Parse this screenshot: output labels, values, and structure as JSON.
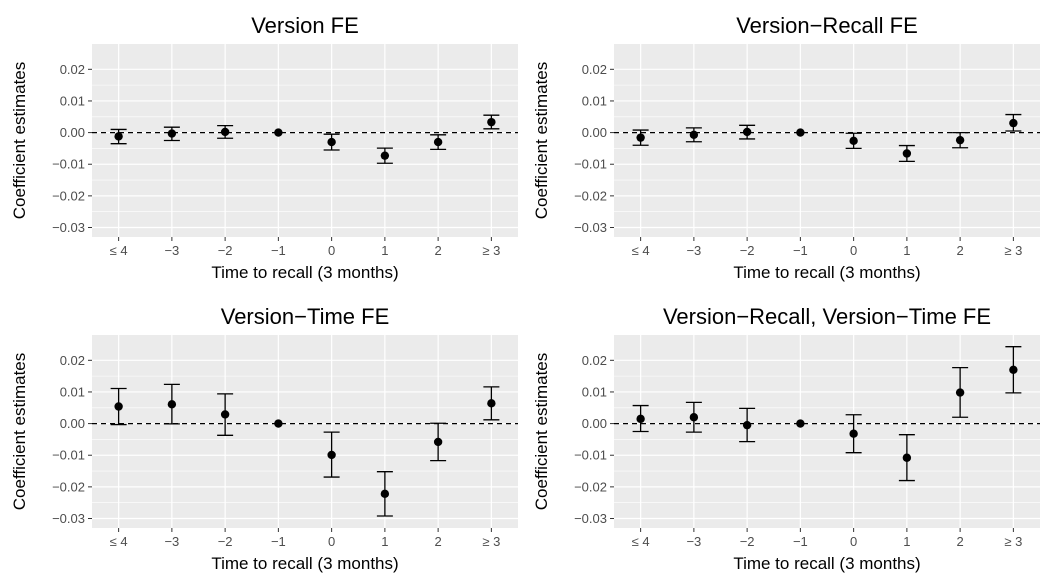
{
  "figure": {
    "background": "#ffffff",
    "panel_background": "#ebebeb",
    "grid_color": "#ffffff",
    "tick_color": "#333333",
    "tick_label_color": "#4d4d4d",
    "point_color": "#000000",
    "reference_line": {
      "y": 0,
      "style": "dashed",
      "color": "#000000"
    }
  },
  "chart_data": [
    {
      "type": "scatter",
      "title": "Version FE",
      "xlabel": "Time to recall (3 months)",
      "ylabel": "Coefficient estimates",
      "categories": [
        "≤ 4",
        "−3",
        "−2",
        "−1",
        "0",
        "1",
        "2",
        "≥ 3"
      ],
      "ylim": [
        -0.033,
        0.028
      ],
      "yticks": [
        -0.03,
        -0.02,
        -0.01,
        0.0,
        0.01,
        0.02
      ],
      "ytick_labels": [
        "−0.03",
        "−0.02",
        "−0.01",
        "0.00",
        "0.01",
        "0.02"
      ],
      "grid": true,
      "values": [
        -0.0012,
        -0.0003,
        0.0002,
        0.0,
        -0.003,
        -0.0073,
        -0.003,
        0.0033
      ],
      "ci_low": [
        -0.0035,
        -0.0025,
        -0.0018,
        0.0,
        -0.0055,
        -0.0097,
        -0.0053,
        0.0012
      ],
      "ci_high": [
        0.001,
        0.0017,
        0.0022,
        0.0,
        -0.0005,
        -0.0049,
        -0.0007,
        0.0055
      ]
    },
    {
      "type": "scatter",
      "title": "Version−Recall FE",
      "xlabel": "Time to recall (3 months)",
      "ylabel": "Coefficient estimates",
      "categories": [
        "≤ 4",
        "−3",
        "−2",
        "−1",
        "0",
        "1",
        "2",
        "≥ 3"
      ],
      "ylim": [
        -0.033,
        0.028
      ],
      "yticks": [
        -0.03,
        -0.02,
        -0.01,
        0.0,
        0.01,
        0.02
      ],
      "ytick_labels": [
        "−0.03",
        "−0.02",
        "−0.01",
        "0.00",
        "0.01",
        "0.02"
      ],
      "grid": true,
      "values": [
        -0.0016,
        -0.0007,
        0.0002,
        0.0,
        -0.0026,
        -0.0066,
        -0.0024,
        0.003
      ],
      "ci_low": [
        -0.004,
        -0.0029,
        -0.002,
        0.0,
        -0.005,
        -0.0091,
        -0.0048,
        0.0005
      ],
      "ci_high": [
        0.0008,
        0.0015,
        0.0023,
        0.0,
        -0.0002,
        -0.0041,
        0.0,
        0.0057
      ]
    },
    {
      "type": "scatter",
      "title": "Version−Time FE",
      "xlabel": "Time to recall (3 months)",
      "ylabel": "Coefficient estimates",
      "categories": [
        "≤ 4",
        "−3",
        "−2",
        "−1",
        "0",
        "1",
        "2",
        "≥ 3"
      ],
      "ylim": [
        -0.033,
        0.028
      ],
      "yticks": [
        -0.03,
        -0.02,
        -0.01,
        0.0,
        0.01,
        0.02
      ],
      "ytick_labels": [
        "−0.03",
        "−0.02",
        "−0.01",
        "0.00",
        "0.01",
        "0.02"
      ],
      "grid": true,
      "values": [
        0.0054,
        0.0061,
        0.0029,
        0.0,
        -0.0099,
        -0.0222,
        -0.0058,
        0.0064
      ],
      "ci_low": [
        -0.0003,
        -0.0001,
        -0.0037,
        0.0,
        -0.0169,
        -0.0292,
        -0.0117,
        0.0012
      ],
      "ci_high": [
        0.0111,
        0.0124,
        0.0094,
        0.0,
        -0.0027,
        -0.0152,
        0.0001,
        0.0116
      ]
    },
    {
      "type": "scatter",
      "title": "Version−Recall, Version−Time FE",
      "xlabel": "Time to recall (3 months)",
      "ylabel": "Coefficient estimates",
      "categories": [
        "≤ 4",
        "−3",
        "−2",
        "−1",
        "0",
        "1",
        "2",
        "≥ 3"
      ],
      "ylim": [
        -0.033,
        0.028
      ],
      "yticks": [
        -0.03,
        -0.02,
        -0.01,
        0.0,
        0.01,
        0.02
      ],
      "ytick_labels": [
        "−0.03",
        "−0.02",
        "−0.01",
        "0.00",
        "0.01",
        "0.02"
      ],
      "grid": true,
      "values": [
        0.0015,
        0.002,
        -0.0005,
        0.0,
        -0.0032,
        -0.0108,
        0.0098,
        0.017
      ],
      "ci_low": [
        -0.0025,
        -0.0027,
        -0.0057,
        0.0,
        -0.0092,
        -0.018,
        0.002,
        0.0097
      ],
      "ci_high": [
        0.0057,
        0.0067,
        0.0048,
        0.0,
        0.0028,
        -0.0035,
        0.0177,
        0.0243
      ]
    }
  ]
}
